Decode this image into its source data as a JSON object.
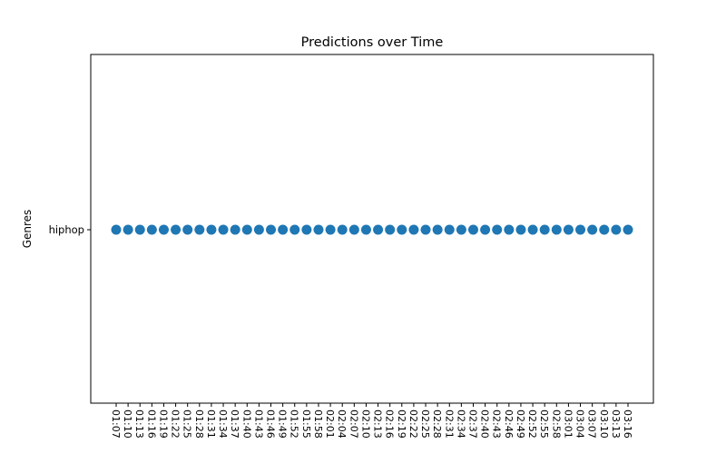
{
  "chart_data": {
    "type": "scatter",
    "title": "Predictions over Time",
    "xlabel": "",
    "ylabel": "Genres",
    "categories_y": [
      "hiphop"
    ],
    "x": [
      "01:07",
      "01:10",
      "01:13",
      "01:16",
      "01:19",
      "01:22",
      "01:25",
      "01:28",
      "01:31",
      "01:34",
      "01:37",
      "01:40",
      "01:43",
      "01:46",
      "01:49",
      "01:52",
      "01:55",
      "01:58",
      "02:01",
      "02:04",
      "02:07",
      "02:10",
      "02:13",
      "02:16",
      "02:19",
      "02:22",
      "02:25",
      "02:28",
      "02:31",
      "02:34",
      "02:37",
      "02:40",
      "02:43",
      "02:46",
      "02:49",
      "02:52",
      "02:55",
      "02:58",
      "03:01",
      "03:04",
      "03:07",
      "03:10",
      "03:13",
      "03:16"
    ],
    "y": [
      "hiphop",
      "hiphop",
      "hiphop",
      "hiphop",
      "hiphop",
      "hiphop",
      "hiphop",
      "hiphop",
      "hiphop",
      "hiphop",
      "hiphop",
      "hiphop",
      "hiphop",
      "hiphop",
      "hiphop",
      "hiphop",
      "hiphop",
      "hiphop",
      "hiphop",
      "hiphop",
      "hiphop",
      "hiphop",
      "hiphop",
      "hiphop",
      "hiphop",
      "hiphop",
      "hiphop",
      "hiphop",
      "hiphop",
      "hiphop",
      "hiphop",
      "hiphop",
      "hiphop",
      "hiphop",
      "hiphop",
      "hiphop",
      "hiphop",
      "hiphop",
      "hiphop",
      "hiphop",
      "hiphop",
      "hiphop",
      "hiphop",
      "hiphop"
    ],
    "marker_color": "#1f77b4",
    "grid": false,
    "legend": "none"
  }
}
